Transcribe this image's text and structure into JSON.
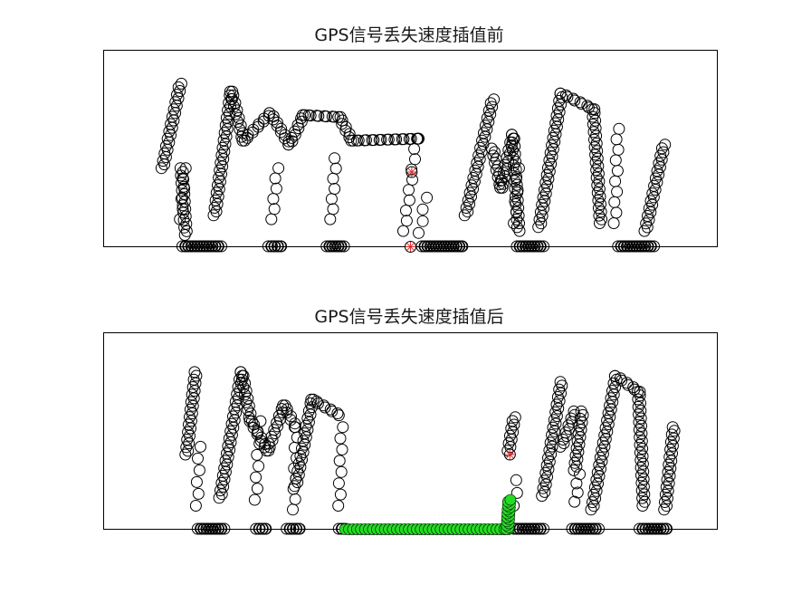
{
  "chart_data": [
    {
      "type": "scatter",
      "title": "GPS信号丢失速度插值前",
      "xlim": [
        0,
        100
      ],
      "ylim": [
        0,
        100
      ],
      "xlabel": "",
      "ylabel": "",
      "grid": false,
      "axes_ticks": false,
      "marker": "open-circle",
      "marker_color": "#000000",
      "series": [
        {
          "key": "speed",
          "color": "#000000",
          "marker": "circle",
          "segments": [
            {
              "x": [
                9.6,
                12.5
              ],
              "y": [
                40.0,
                83.0
              ]
            },
            {
              "x": [
                12.7,
                13.4
              ],
              "y": [
                40.0,
                6.0
              ]
            },
            {
              "x": [
                18.1,
                20.8
              ],
              "y": [
                16.0,
                79.0
              ]
            },
            {
              "x": [
                20.8,
                22.8
              ],
              "y": [
                79.0,
                54.0
              ]
            },
            {
              "x": [
                22.8,
                27.2
              ],
              "y": [
                54.0,
                68.0
              ]
            },
            {
              "x": [
                27.2,
                30.3
              ],
              "y": [
                68.0,
                52.0
              ]
            },
            {
              "x": [
                30.3,
                32.6
              ],
              "y": [
                52.0,
                67.0
              ]
            },
            {
              "x": [
                32.6,
                38.4
              ],
              "y": [
                67.0,
                66.0
              ]
            },
            {
              "x": [
                38.4,
                40.5
              ],
              "y": [
                66.0,
                54.0
              ]
            },
            {
              "x": [
                40.5,
                51.5
              ],
              "y": [
                54.0,
                55.0
              ]
            },
            {
              "x": [
                59.0,
                63.4
              ],
              "y": [
                16.0,
                75.0
              ]
            },
            {
              "x": [
                63.4,
                64.8
              ],
              "y": [
                50.0,
                30.0
              ]
            },
            {
              "x": [
                64.8,
                66.7
              ],
              "y": [
                30.0,
                57.0
              ]
            },
            {
              "x": [
                66.7,
                67.6
              ],
              "y": [
                57.0,
                8.0
              ]
            },
            {
              "x": [
                71.0,
                74.6
              ],
              "y": [
                10.0,
                78.0
              ]
            },
            {
              "x": [
                74.6,
                79.8
              ],
              "y": [
                78.0,
                70.0
              ]
            },
            {
              "x": [
                79.8,
                81.0
              ],
              "y": [
                70.0,
                12.0
              ]
            },
            {
              "x": [
                88.3,
                91.3
              ],
              "y": [
                8.0,
                52.0
              ]
            }
          ],
          "drops": [
            {
              "x": [
                12.6,
                13.2
              ],
              "y": [
                14.0,
                40.0
              ]
            },
            {
              "x": [
                27.5,
                28.3
              ],
              "y": [
                14.0,
                40.0
              ]
            },
            {
              "x": [
                37.1,
                37.8
              ],
              "y": [
                14.0,
                45.0
              ]
            },
            {
              "x": [
                49.0,
                51.0
              ],
              "y": [
                8.0,
                55.0
              ]
            },
            {
              "x": [
                51.5,
                52.5
              ],
              "y": [
                7.0,
                25.0
              ]
            },
            {
              "x": [
                67.0,
                67.5
              ],
              "y": [
                12.0,
                40.0
              ]
            },
            {
              "x": [
                83.3,
                83.8
              ],
              "y": [
                12.0,
                60.0
              ]
            }
          ],
          "zero_runs": [
            {
              "x": [
                13.0,
                19.0
              ],
              "y": 0
            },
            {
              "x": [
                27.0,
                29.0
              ],
              "y": 0
            },
            {
              "x": [
                36.5,
                39.0
              ],
              "y": 0
            },
            {
              "x": [
                52.0,
                58.5
              ],
              "y": 0
            },
            {
              "x": [
                67.5,
                71.5
              ],
              "y": 0
            },
            {
              "x": [
                84.0,
                89.5
              ],
              "y": 0
            }
          ]
        },
        {
          "key": "gps-loss",
          "color": "#e03030",
          "marker": "asterisk",
          "points": [
            {
              "x": 50.2,
              "y": 38.0
            },
            {
              "x": 50.0,
              "y": 0.0
            }
          ]
        }
      ]
    },
    {
      "type": "scatter",
      "title": "GPS信号丢失速度插值后",
      "xlim": [
        0,
        100
      ],
      "ylim": [
        0,
        100
      ],
      "xlabel": "",
      "ylabel": "",
      "grid": false,
      "axes_ticks": false,
      "marker": "open-circle",
      "marker_color": "#000000",
      "series": [
        {
          "key": "speed",
          "color": "#000000",
          "marker": "circle",
          "segments": [
            {
              "x": [
                13.5,
                15.0
              ],
              "y": [
                38.0,
                80.0
              ]
            },
            {
              "x": [
                19.0,
                22.5
              ],
              "y": [
                16.0,
                80.0
              ]
            },
            {
              "x": [
                22.5,
                24.0
              ],
              "y": [
                80.0,
                55.0
              ]
            },
            {
              "x": [
                24.0,
                26.7
              ],
              "y": [
                55.0,
                40.0
              ]
            },
            {
              "x": [
                26.7,
                29.4
              ],
              "y": [
                40.0,
                63.0
              ]
            },
            {
              "x": [
                29.4,
                31.3
              ],
              "y": [
                63.0,
                52.0
              ]
            },
            {
              "x": [
                31.3,
                34.0
              ],
              "y": [
                22.0,
                66.0
              ]
            },
            {
              "x": [
                34.0,
                38.5
              ],
              "y": [
                66.0,
                58.0
              ]
            },
            {
              "x": [
                66.0,
                66.9
              ],
              "y": [
                40.0,
                57.0
              ]
            },
            {
              "x": [
                71.6,
                74.6
              ],
              "y": [
                17.0,
                75.0
              ]
            },
            {
              "x": [
                74.6,
                76.8
              ],
              "y": [
                42.0,
                60.0
              ]
            },
            {
              "x": [
                76.8,
                78.0
              ],
              "y": [
                30.0,
                60.0
              ]
            },
            {
              "x": [
                79.6,
                83.5
              ],
              "y": [
                10.0,
                78.0
              ]
            },
            {
              "x": [
                83.5,
                87.2
              ],
              "y": [
                78.0,
                70.0
              ]
            },
            {
              "x": [
                87.2,
                88.0
              ],
              "y": [
                70.0,
                12.0
              ]
            },
            {
              "x": [
                91.5,
                92.9
              ],
              "y": [
                10.0,
                52.0
              ]
            }
          ],
          "drops": [
            {
              "x": [
                15.2,
                15.6
              ],
              "y": [
                12.0,
                42.0
              ]
            },
            {
              "x": [
                24.8,
                25.4
              ],
              "y": [
                15.0,
                55.0
              ]
            },
            {
              "x": [
                31.0,
                31.4
              ],
              "y": [
                10.0,
                52.0
              ]
            },
            {
              "x": [
                38.4,
                38.8
              ],
              "y": [
                12.0,
                52.0
              ]
            },
            {
              "x": [
                67.0,
                67.4
              ],
              "y": [
                12.0,
                25.0
              ]
            },
            {
              "x": [
                76.9,
                77.4
              ],
              "y": [
                14.0,
                28.0
              ]
            }
          ],
          "zero_runs": [
            {
              "x": [
                15.5,
                19.5
              ],
              "y": 0
            },
            {
              "x": [
                25.0,
                26.5
              ],
              "y": 0
            },
            {
              "x": [
                30.0,
                32.0
              ],
              "y": 0
            },
            {
              "x": [
                38.5,
                39.2
              ],
              "y": 0
            },
            {
              "x": [
                67.0,
                71.5
              ],
              "y": 0
            },
            {
              "x": [
                76.5,
                80.5
              ],
              "y": 0
            },
            {
              "x": [
                87.5,
                91.8
              ],
              "y": 0
            }
          ]
        },
        {
          "key": "interpolated",
          "color": "#22dd22",
          "marker": "circle-filled",
          "segments": [
            {
              "x": [
                39.5,
                65.8
              ],
              "y": [
                0.0,
                0.0
              ]
            },
            {
              "x": [
                65.8,
                66.1
              ],
              "y": [
                0.0,
                15.0
              ]
            }
          ]
        },
        {
          "key": "gps-loss",
          "color": "#e03030",
          "marker": "asterisk",
          "points": [
            {
              "x": 66.2,
              "y": 38.0
            }
          ]
        }
      ]
    }
  ]
}
